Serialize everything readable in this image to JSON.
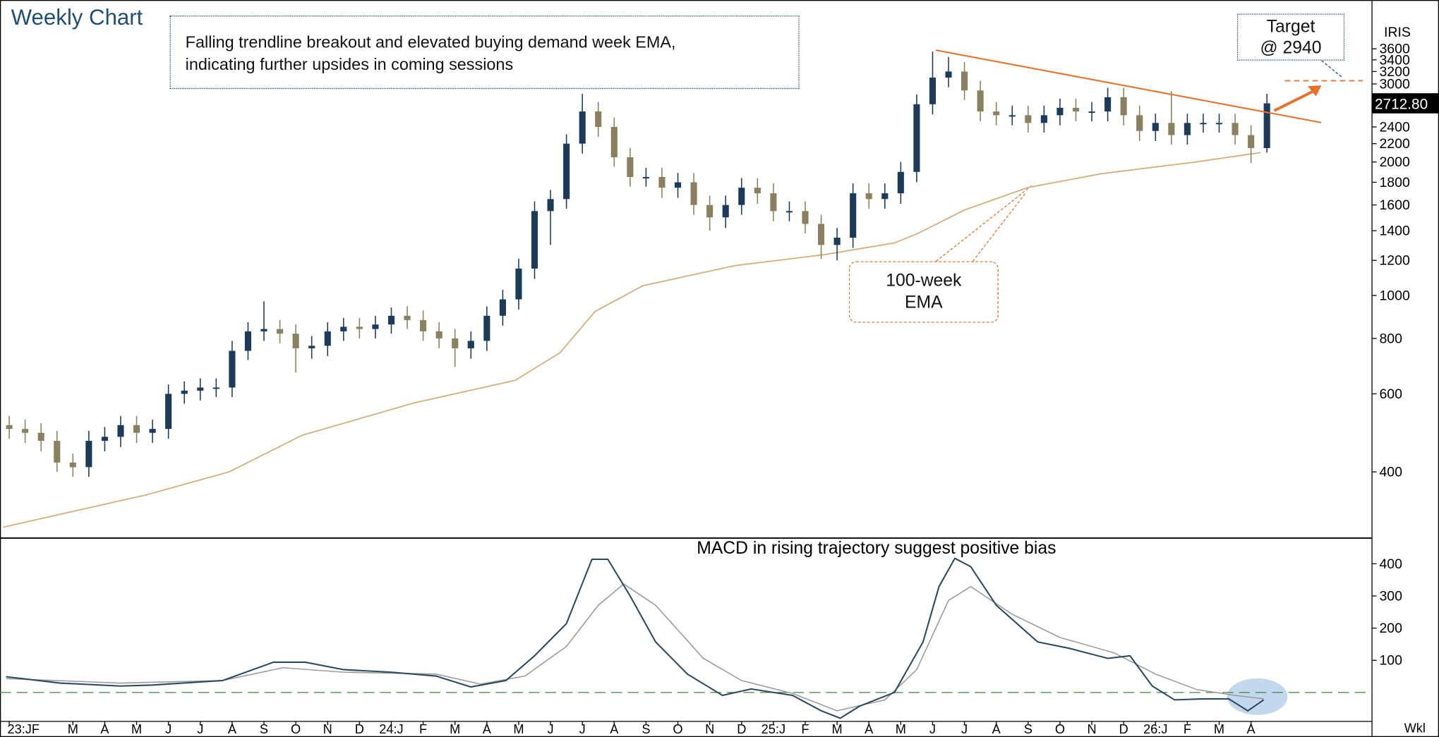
{
  "chart_data": [
    {
      "type": "candlestick",
      "title": "Weekly Chart",
      "annotation": [
        "Falling trendline breakout and elevated  buying demand week EMA,",
        "indicating further upsides in coming sessions"
      ],
      "target_text": [
        "Target",
        "@ 2940"
      ],
      "target_level": 3050,
      "symbol": "IRIS",
      "last_price": 2712.8,
      "last_price_label": "2712.80",
      "colors": {
        "up": "#1c3b5a",
        "down": "#8a8060"
      },
      "log_scale": true,
      "xlim": [
        -0.29,
        42.8
      ],
      "ylim": [
        285,
        4530
      ],
      "yticks": [
        400,
        600,
        800,
        1000,
        1200,
        1400,
        1600,
        1800,
        2000,
        2200,
        2400,
        3000,
        3200,
        3400,
        3600
      ],
      "x": [
        0,
        0.5,
        1,
        1.5,
        2,
        2.5,
        3,
        3.5,
        4,
        4.5,
        5,
        5.5,
        6,
        6.5,
        7,
        7.5,
        8,
        8.5,
        9,
        9.5,
        10,
        10.5,
        11,
        11.5,
        12,
        12.5,
        13,
        13.5,
        14,
        14.5,
        15,
        15.5,
        16,
        16.5,
        17,
        17.5,
        18,
        18.5,
        19,
        19.5,
        20,
        20.5,
        21,
        21.5,
        22,
        22.5,
        23,
        23.5,
        24,
        24.5,
        25,
        25.5,
        26,
        26.5,
        27,
        27.5,
        28,
        28.5,
        29,
        29.5,
        30,
        30.5,
        31,
        31.5,
        32,
        32.5,
        33,
        33.5,
        34,
        34.5,
        35,
        35.5,
        36,
        36.5,
        37,
        37.5,
        38,
        38.5,
        39,
        39.5
      ],
      "open": [
        510,
        500,
        490,
        470,
        420,
        410,
        470,
        480,
        510,
        490,
        500,
        600,
        610,
        620,
        620,
        750,
        830,
        840,
        820,
        760,
        770,
        830,
        850,
        840,
        860,
        900,
        880,
        830,
        800,
        760,
        790,
        900,
        980,
        1150,
        1550,
        1650,
        2200,
        2600,
        2400,
        2050,
        1850,
        1850,
        1750,
        1800,
        1600,
        1500,
        1600,
        1750,
        1700,
        1550,
        1550,
        1450,
        1300,
        1350,
        1700,
        1650,
        1700,
        1900,
        2700,
        3100,
        3200,
        2900,
        2600,
        2550,
        2550,
        2450,
        2550,
        2650,
        2600,
        2600,
        2800,
        2550,
        2350,
        2450,
        2300,
        2450,
        2450,
        2450,
        2300,
        2150
      ],
      "high": [
        535,
        525,
        515,
        495,
        440,
        495,
        505,
        535,
        535,
        525,
        630,
        640,
        650,
        650,
        790,
        870,
        970,
        880,
        860,
        810,
        870,
        890,
        890,
        900,
        940,
        945,
        925,
        870,
        840,
        830,
        945,
        1030,
        1210,
        1630,
        1730,
        2310,
        2850,
        2730,
        2520,
        2150,
        1940,
        1940,
        1890,
        1890,
        1680,
        1680,
        1840,
        1840,
        1790,
        1630,
        1630,
        1520,
        1420,
        1790,
        1790,
        1790,
        2000,
        2840,
        3550,
        3450,
        3360,
        3050,
        2730,
        2680,
        2680,
        2680,
        2780,
        2780,
        2730,
        2940,
        2940,
        2680,
        2570,
        2890,
        2570,
        2570,
        2570,
        2570,
        2420,
        2850
      ],
      "low": [
        475,
        465,
        445,
        400,
        390,
        390,
        445,
        455,
        465,
        465,
        475,
        570,
        580,
        590,
        590,
        715,
        790,
        780,
        670,
        720,
        730,
        790,
        800,
        800,
        820,
        840,
        790,
        760,
        690,
        720,
        750,
        855,
        930,
        1090,
        1300,
        1570,
        2090,
        2280,
        1950,
        1760,
        1760,
        1660,
        1660,
        1520,
        1400,
        1420,
        1520,
        1610,
        1470,
        1470,
        1380,
        1210,
        1200,
        1280,
        1570,
        1570,
        1610,
        1800,
        2560,
        2950,
        2760,
        2470,
        2420,
        2420,
        2330,
        2330,
        2420,
        2470,
        2470,
        2470,
        2420,
        2230,
        2230,
        2190,
        2190,
        2330,
        2330,
        2190,
        1990,
        2100
      ],
      "close": [
        500,
        490,
        470,
        420,
        410,
        470,
        480,
        510,
        490,
        500,
        600,
        610,
        620,
        620,
        750,
        830,
        840,
        820,
        760,
        770,
        830,
        850,
        840,
        860,
        900,
        880,
        830,
        800,
        760,
        790,
        900,
        980,
        1150,
        1550,
        1650,
        2200,
        2600,
        2400,
        2050,
        1850,
        1850,
        1750,
        1800,
        1600,
        1500,
        1600,
        1750,
        1700,
        1550,
        1550,
        1450,
        1300,
        1350,
        1700,
        1650,
        1700,
        1900,
        2700,
        3100,
        3200,
        2900,
        2600,
        2550,
        2550,
        2450,
        2550,
        2650,
        2600,
        2600,
        2800,
        2550,
        2350,
        2450,
        2300,
        2450,
        2450,
        2450,
        2300,
        2150,
        2712.8
      ],
      "series": [
        {
          "name": "100-week EMA",
          "color": "#d4b07c",
          "x": [
            -0.2,
            4.3,
            6.9,
            9.2,
            12.7,
            15.9,
            17.3,
            18.4,
            19.9,
            22.8,
            25.6,
            27.8,
            28.5,
            30,
            32,
            34.3,
            37.2,
            39.3
          ],
          "values": [
            300,
            355,
            400,
            484,
            572,
            644,
            743,
            920,
            1052,
            1168,
            1236,
            1314,
            1376,
            1559,
            1752,
            1882,
            1997,
            2100
          ]
        }
      ],
      "trendline": {
        "color": "#e8702a",
        "x": [
          29.1,
          41.2
        ],
        "values": [
          3575,
          2455
        ]
      }
    },
    {
      "type": "line",
      "title": "MACD in rising trajectory suggest positive bias",
      "x_label": "Wkl",
      "xlim": [
        -0.29,
        42.8
      ],
      "ylim": [
        -90,
        477
      ],
      "yticks": [
        100,
        200,
        300,
        400
      ],
      "reference_line": 0,
      "xticks": [
        {
          "value": 0,
          "label": "23:JF"
        },
        {
          "value": 2,
          "label": "M"
        },
        {
          "value": 3,
          "label": "A"
        },
        {
          "value": 4,
          "label": "M"
        },
        {
          "value": 5,
          "label": "J"
        },
        {
          "value": 6,
          "label": "J"
        },
        {
          "value": 7,
          "label": "A"
        },
        {
          "value": 8,
          "label": "S"
        },
        {
          "value": 9,
          "label": "O"
        },
        {
          "value": 10,
          "label": "N"
        },
        {
          "value": 11,
          "label": "D"
        },
        {
          "value": 12,
          "label": "24:J"
        },
        {
          "value": 13,
          "label": "F"
        },
        {
          "value": 14,
          "label": "M"
        },
        {
          "value": 15,
          "label": "A"
        },
        {
          "value": 16,
          "label": "M"
        },
        {
          "value": 17,
          "label": "J"
        },
        {
          "value": 18,
          "label": "J"
        },
        {
          "value": 19,
          "label": "A"
        },
        {
          "value": 20,
          "label": "S"
        },
        {
          "value": 21,
          "label": "O"
        },
        {
          "value": 22,
          "label": "N"
        },
        {
          "value": 23,
          "label": "D"
        },
        {
          "value": 24,
          "label": "25:J"
        },
        {
          "value": 25,
          "label": "F"
        },
        {
          "value": 26,
          "label": "M"
        },
        {
          "value": 27,
          "label": "A"
        },
        {
          "value": 28,
          "label": "M"
        },
        {
          "value": 29,
          "label": "J"
        },
        {
          "value": 30,
          "label": "J"
        },
        {
          "value": 31,
          "label": "A"
        },
        {
          "value": 32,
          "label": "S"
        },
        {
          "value": 33,
          "label": "O"
        },
        {
          "value": 34,
          "label": "N"
        },
        {
          "value": 35,
          "label": "D"
        },
        {
          "value": 36,
          "label": "26:J"
        },
        {
          "value": 37,
          "label": "F"
        },
        {
          "value": 38,
          "label": "M"
        },
        {
          "value": 39,
          "label": "A"
        }
      ],
      "series": [
        {
          "name": "MACD",
          "color": "#2a4a60",
          "x": [
            -0.1,
            1.6,
            3.5,
            4.5,
            6.7,
            8.3,
            9.3,
            10.5,
            12,
            13.4,
            14.5,
            15.6,
            16.5,
            17.5,
            18.3,
            18.8,
            19.5,
            20.3,
            21.3,
            22.4,
            23.3,
            24.6,
            25.5,
            26.1,
            26.7,
            27.8,
            28.7,
            29.2,
            29.7,
            30.2,
            31,
            32.3,
            33.3,
            34.5,
            35.2,
            35.9,
            36.6,
            37.5,
            38.3,
            38.9,
            39.4
          ],
          "values": [
            49,
            29,
            20,
            23,
            37,
            94,
            94,
            71,
            63,
            51,
            17,
            37,
            114,
            214,
            414,
            414,
            300,
            157,
            57,
            -9,
            11,
            -9,
            -57,
            -80,
            -43,
            0,
            157,
            329,
            417,
            391,
            271,
            157,
            137,
            106,
            114,
            20,
            -23,
            -20,
            -20,
            -57,
            -23
          ]
        },
        {
          "name": "Signal",
          "color": "#9a9a9a",
          "x": [
            -0.1,
            3.5,
            6.7,
            8.6,
            10.5,
            13.4,
            14.8,
            16.2,
            17.5,
            18.5,
            19.3,
            20.3,
            21.8,
            23,
            24.6,
            26,
            27.5,
            28.5,
            29.5,
            30.2,
            31.5,
            33,
            34.7,
            36,
            37.3,
            38.5,
            39.4
          ],
          "values": [
            43,
            29,
            37,
            77,
            63,
            57,
            26,
            51,
            143,
            271,
            337,
            271,
            106,
            37,
            -3,
            -57,
            -23,
            71,
            286,
            329,
            243,
            171,
            123,
            57,
            9,
            -9,
            -20
          ]
        }
      ]
    }
  ]
}
